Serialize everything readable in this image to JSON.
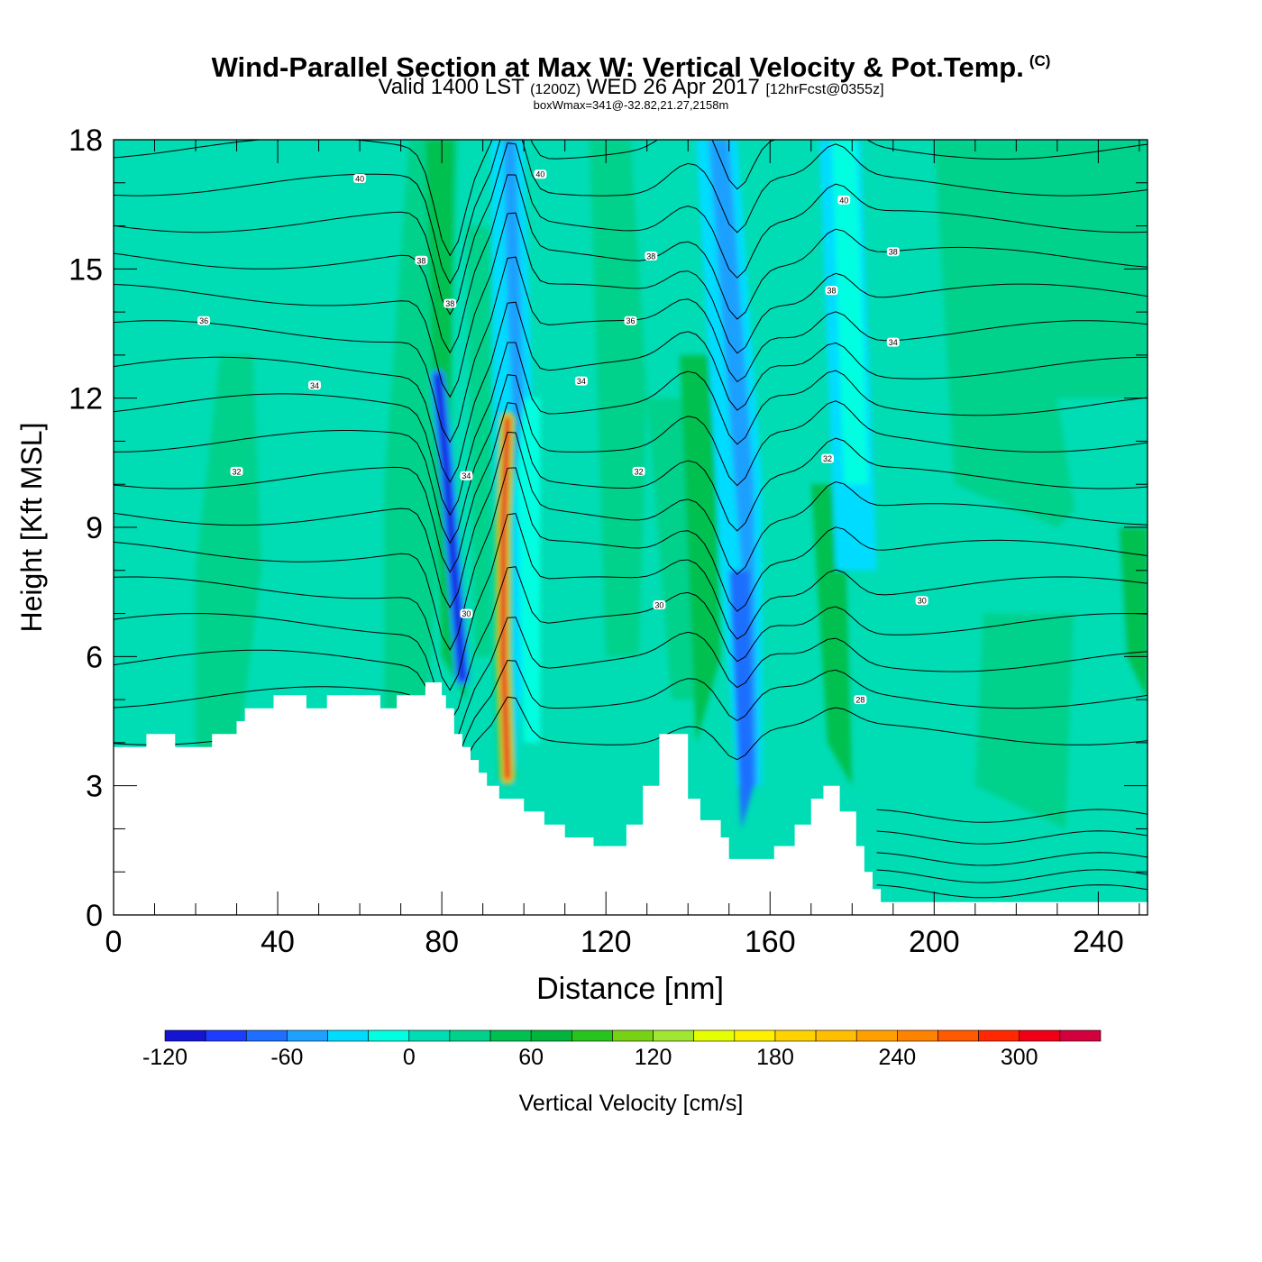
{
  "header": {
    "title": "Wind-Parallel Section at Max W: Vertical Velocity & Pot.Temp.",
    "copyright": "(C)",
    "valid_prefix": "Valid 1400 LST",
    "valid_utc": "(1200Z)",
    "valid_date": "WED 26 Apr 2017",
    "forecast": "[12hrFcst@0355z]",
    "subtitle": "boxWmax=341@-32.82,21.27,2158m"
  },
  "chart_data": {
    "type": "contour",
    "title": "Wind-Parallel Section at Max W: Vertical Velocity & Pot.Temp.",
    "xlabel": "Distance [nm]",
    "ylabel": "Height [Kft MSL]",
    "xlim": [
      0,
      252
    ],
    "ylim": [
      0,
      18
    ],
    "x_ticks": [
      0,
      40,
      80,
      120,
      160,
      200,
      240
    ],
    "y_ticks": [
      0,
      3,
      6,
      9,
      12,
      15,
      18
    ],
    "colorbar": {
      "label": "Vertical Velocity [cm/s]",
      "min": -120,
      "max": 340,
      "step": 20,
      "tick_labels": [
        "-120",
        "-60",
        "0",
        "60",
        "120",
        "180",
        "240",
        "300"
      ],
      "colors": [
        "#1414d2",
        "#1e3cff",
        "#1e6eff",
        "#1ea0ff",
        "#00dcff",
        "#00ffe1",
        "#00dcb4",
        "#00d28c",
        "#00c050",
        "#00b43c",
        "#28c41e",
        "#78d214",
        "#a0e632",
        "#e6ff00",
        "#fff000",
        "#ffd200",
        "#ffbe00",
        "#ffa000",
        "#ff8200",
        "#ff5a00",
        "#ff2800",
        "#f00014",
        "#d2003c"
      ]
    },
    "terrain": [
      [
        0,
        3.9
      ],
      [
        8,
        3.9
      ],
      [
        8,
        4.2
      ],
      [
        15,
        4.2
      ],
      [
        15,
        3.9
      ],
      [
        24,
        3.9
      ],
      [
        24,
        4.2
      ],
      [
        30,
        4.2
      ],
      [
        30,
        4.5
      ],
      [
        32,
        4.5
      ],
      [
        32,
        4.8
      ],
      [
        39,
        4.8
      ],
      [
        39,
        5.1
      ],
      [
        47,
        5.1
      ],
      [
        47,
        4.8
      ],
      [
        52,
        4.8
      ],
      [
        52,
        5.1
      ],
      [
        65,
        5.1
      ],
      [
        65,
        4.8
      ],
      [
        69,
        4.8
      ],
      [
        69,
        5.1
      ],
      [
        76,
        5.1
      ],
      [
        76,
        5.4
      ],
      [
        80,
        5.4
      ],
      [
        80,
        5.1
      ],
      [
        81,
        5.1
      ],
      [
        81,
        4.8
      ],
      [
        83,
        4.8
      ],
      [
        83,
        4.2
      ],
      [
        85,
        4.2
      ],
      [
        85,
        3.9
      ],
      [
        87,
        3.9
      ],
      [
        87,
        3.6
      ],
      [
        89,
        3.6
      ],
      [
        89,
        3.3
      ],
      [
        91,
        3.3
      ],
      [
        91,
        3.0
      ],
      [
        94,
        3.0
      ],
      [
        94,
        2.7
      ],
      [
        100,
        2.7
      ],
      [
        100,
        2.4
      ],
      [
        105,
        2.4
      ],
      [
        105,
        2.1
      ],
      [
        110,
        2.1
      ],
      [
        110,
        1.8
      ],
      [
        117,
        1.8
      ],
      [
        117,
        1.6
      ],
      [
        125,
        1.6
      ],
      [
        125,
        2.1
      ],
      [
        129,
        2.1
      ],
      [
        129,
        3.0
      ],
      [
        133,
        3.0
      ],
      [
        133,
        4.2
      ],
      [
        140,
        4.2
      ],
      [
        140,
        2.7
      ],
      [
        143,
        2.7
      ],
      [
        143,
        2.2
      ],
      [
        148,
        2.2
      ],
      [
        148,
        1.8
      ],
      [
        150,
        1.8
      ],
      [
        150,
        1.3
      ],
      [
        161,
        1.3
      ],
      [
        161,
        1.6
      ],
      [
        166,
        1.6
      ],
      [
        166,
        2.1
      ],
      [
        170,
        2.1
      ],
      [
        170,
        2.7
      ],
      [
        173,
        2.7
      ],
      [
        173,
        3.0
      ],
      [
        177,
        3.0
      ],
      [
        177,
        2.4
      ],
      [
        181,
        2.4
      ],
      [
        181,
        1.6
      ],
      [
        183,
        1.6
      ],
      [
        183,
        1.0
      ],
      [
        185,
        1.0
      ],
      [
        185,
        0.6
      ],
      [
        187,
        0.6
      ],
      [
        187,
        0.3
      ],
      [
        252,
        0.3
      ]
    ],
    "theta_contour_labels": [
      {
        "label": "40",
        "x": 60,
        "y": 17.1
      },
      {
        "label": "40",
        "x": 104,
        "y": 17.2
      },
      {
        "label": "40",
        "x": 178,
        "y": 16.6
      },
      {
        "label": "38",
        "x": 75,
        "y": 15.2
      },
      {
        "label": "38",
        "x": 131,
        "y": 15.3
      },
      {
        "label": "38",
        "x": 190,
        "y": 15.4
      },
      {
        "label": "38",
        "x": 82,
        "y": 14.2
      },
      {
        "label": "38",
        "x": 175,
        "y": 14.5
      },
      {
        "label": "36",
        "x": 22,
        "y": 13.8
      },
      {
        "label": "36",
        "x": 126,
        "y": 13.8
      },
      {
        "label": "34",
        "x": 190,
        "y": 13.3
      },
      {
        "label": "34",
        "x": 49,
        "y": 12.3
      },
      {
        "label": "34",
        "x": 114,
        "y": 12.4
      },
      {
        "label": "32",
        "x": 30,
        "y": 10.3
      },
      {
        "label": "34",
        "x": 86,
        "y": 10.2
      },
      {
        "label": "32",
        "x": 128,
        "y": 10.3
      },
      {
        "label": "32",
        "x": 174,
        "y": 10.6
      },
      {
        "label": "30",
        "x": 197,
        "y": 7.3
      },
      {
        "label": "30",
        "x": 86,
        "y": 7.0
      },
      {
        "label": "30",
        "x": 133,
        "y": 7.2
      },
      {
        "label": "28",
        "x": 182,
        "y": 5.0
      }
    ]
  }
}
